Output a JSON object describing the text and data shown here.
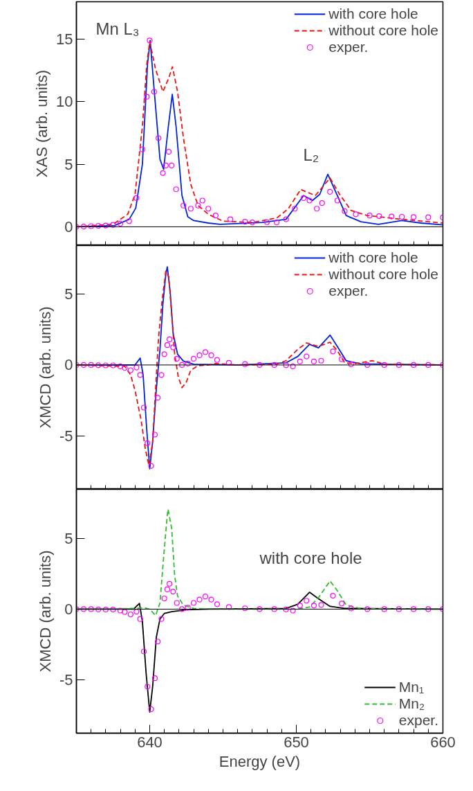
{
  "chart_data": [
    {
      "type": "line",
      "ylabel": "XAS (arb. units)",
      "xlim": [
        635,
        660
      ],
      "ylim": [
        -1.5,
        18
      ],
      "xticks": [
        {
          "value": 635,
          "label": null
        },
        {
          "value": 636,
          "label": null
        },
        {
          "value": 637,
          "label": null
        },
        {
          "value": 638,
          "label": null
        },
        {
          "value": 639,
          "label": null
        },
        {
          "value": 640,
          "label": null
        },
        {
          "value": 641,
          "label": null
        },
        {
          "value": 642,
          "label": null
        },
        {
          "value": 643,
          "label": null
        },
        {
          "value": 644,
          "label": null
        },
        {
          "value": 645,
          "label": null
        },
        {
          "value": 646,
          "label": null
        },
        {
          "value": 647,
          "label": null
        },
        {
          "value": 648,
          "label": null
        },
        {
          "value": 649,
          "label": null
        },
        {
          "value": 650,
          "label": null
        },
        {
          "value": 651,
          "label": null
        },
        {
          "value": 652,
          "label": null
        },
        {
          "value": 653,
          "label": null
        },
        {
          "value": 654,
          "label": null
        },
        {
          "value": 655,
          "label": null
        },
        {
          "value": 656,
          "label": null
        },
        {
          "value": 657,
          "label": null
        },
        {
          "value": 658,
          "label": null
        },
        {
          "value": 659,
          "label": null
        },
        {
          "value": 660,
          "label": null
        }
      ],
      "yticks": [
        0,
        5,
        10,
        15
      ],
      "tick_labels": "y",
      "legend": "top right",
      "ref_lines": [
        {
          "axis": "y",
          "value": 0,
          "color": "#000000"
        }
      ],
      "annotations": [
        "Mn  L₃",
        "L₂"
      ],
      "series": [
        {
          "name": "with core hole",
          "color": "#0022dd",
          "line_style": "solid",
          "x": [
            635,
            637.6,
            638.6,
            639.05,
            639.5,
            639.85,
            640.03,
            640.3,
            640.7,
            640.95,
            641.27,
            641.54,
            641.8,
            642.2,
            642.6,
            643.0,
            644.0,
            644.8,
            647.7,
            649.3,
            650.5,
            651.1,
            651.6,
            652.15,
            652.8,
            653.4,
            654.4,
            655.6,
            657.2,
            658.5,
            660
          ],
          "values": [
            0,
            0.1,
            0.6,
            1.5,
            5,
            13,
            14.9,
            11,
            5.4,
            4.6,
            8,
            10.6,
            8,
            2.5,
            0.8,
            0.5,
            0.3,
            0.2,
            0.35,
            0.6,
            2.5,
            2.1,
            2.6,
            4.2,
            2.5,
            0.9,
            0.4,
            0.2,
            0.5,
            0.3,
            0.15
          ]
        },
        {
          "name": "without core hole",
          "color": "#ee1111",
          "line_style": "dashed",
          "x": [
            635,
            637.5,
            638.5,
            639.0,
            639.5,
            639.8,
            640.0,
            640.4,
            640.9,
            641.3,
            641.55,
            641.9,
            642.3,
            642.8,
            643.3,
            644.0,
            645.0,
            647.0,
            648.66,
            649.45,
            650.3,
            651.3,
            652.3,
            652.95,
            653.74,
            654.85,
            657.2,
            660
          ],
          "values": [
            0,
            0.2,
            1.0,
            2.6,
            8,
            13,
            14.8,
            12.6,
            10.8,
            11.9,
            12.8,
            10.8,
            7.1,
            3.4,
            1.7,
            1.0,
            0.45,
            0.35,
            0.7,
            1.44,
            2.98,
            2.5,
            3.9,
            2.6,
            1.3,
            0.9,
            0.6,
            0.3
          ]
        },
        {
          "name": "exper.",
          "color": "#ff00ff",
          "type": "scatter",
          "marker": "circle",
          "x": [
            635,
            635.5,
            636,
            636.5,
            637,
            637.5,
            638,
            638.6,
            639.1,
            639.5,
            639.8,
            640.0,
            640.3,
            640.6,
            640.9,
            641.1,
            641.3,
            641.5,
            641.8,
            642.3,
            642.8,
            643.3,
            643.6,
            644.0,
            644.5,
            645.5,
            646.5,
            647.0,
            648.0,
            648.66,
            649.3,
            649.9,
            650.5,
            650.9,
            651.4,
            651.76,
            652.3,
            652.8,
            653.3,
            654.06,
            655.0,
            655.65,
            656.5,
            657.2,
            658.0,
            659.0,
            660
          ],
          "values": [
            0,
            0.02,
            0.05,
            0.08,
            0.1,
            0.15,
            0.25,
            0.45,
            2.3,
            6.2,
            10.4,
            14.9,
            10.8,
            7.1,
            4.3,
            4.9,
            6.0,
            4.9,
            3.0,
            1.7,
            1.45,
            1.7,
            2.1,
            1.45,
            0.9,
            0.6,
            0.4,
            0.35,
            0.37,
            0.35,
            0.6,
            1.45,
            2.3,
            2.1,
            1.45,
            1.9,
            2.8,
            2.1,
            1.25,
            1.0,
            0.9,
            0.85,
            0.82,
            0.8,
            0.78,
            0.76,
            0.75
          ]
        }
      ]
    },
    {
      "type": "line",
      "ylabel": "XMCD (arb. units)",
      "xlim": [
        635,
        660
      ],
      "ylim": [
        -8.75,
        8.4
      ],
      "xticks": [
        {
          "value": 635,
          "label": null
        },
        {
          "value": 636,
          "label": null
        },
        {
          "value": 637,
          "label": null
        },
        {
          "value": 638,
          "label": null
        },
        {
          "value": 639,
          "label": null
        },
        {
          "value": 640,
          "label": null
        },
        {
          "value": 641,
          "label": null
        },
        {
          "value": 642,
          "label": null
        },
        {
          "value": 643,
          "label": null
        },
        {
          "value": 644,
          "label": null
        },
        {
          "value": 645,
          "label": null
        },
        {
          "value": 646,
          "label": null
        },
        {
          "value": 647,
          "label": null
        },
        {
          "value": 648,
          "label": null
        },
        {
          "value": 649,
          "label": null
        },
        {
          "value": 650,
          "label": null
        },
        {
          "value": 651,
          "label": null
        },
        {
          "value": 652,
          "label": null
        },
        {
          "value": 653,
          "label": null
        },
        {
          "value": 654,
          "label": null
        },
        {
          "value": 655,
          "label": null
        },
        {
          "value": 656,
          "label": null
        },
        {
          "value": 657,
          "label": null
        },
        {
          "value": 658,
          "label": null
        },
        {
          "value": 659,
          "label": null
        },
        {
          "value": 660,
          "label": null
        }
      ],
      "yticks": [
        -5,
        0,
        5
      ],
      "tick_labels": "y",
      "legend": "top right",
      "ref_lines": [
        {
          "axis": "y",
          "value": 0,
          "color": "#000000"
        }
      ],
      "series": [
        {
          "name": "with core hole",
          "color": "#0022dd",
          "line_style": "solid",
          "x": [
            635,
            638.5,
            639.0,
            639.35,
            639.55,
            639.8,
            640.0,
            640.2,
            640.45,
            640.7,
            640.9,
            641.1,
            641.2,
            641.4,
            641.6,
            641.9,
            642.3,
            643.0,
            646.0,
            649.3,
            650.1,
            650.9,
            651.5,
            652.3,
            652.8,
            653.4,
            654.4,
            660
          ],
          "values": [
            0,
            0,
            0,
            0.48,
            -0.7,
            -4.6,
            -7.3,
            -5.4,
            -1.7,
            1.1,
            4.3,
            6.4,
            6.9,
            5.1,
            2.2,
            0.76,
            0.27,
            0.05,
            0,
            0.15,
            0.6,
            1.45,
            1.2,
            2.1,
            1.3,
            0.3,
            0.07,
            0
          ]
        },
        {
          "name": "without core hole",
          "color": "#ee1111",
          "line_style": "dashed",
          "x": [
            635,
            638.3,
            638.7,
            639.0,
            639.4,
            639.7,
            639.95,
            640.2,
            640.4,
            640.6,
            640.85,
            641.1,
            641.3,
            641.5,
            641.7,
            641.95,
            642.2,
            642.5,
            642.8,
            643.3,
            644.0,
            644.5,
            646.0,
            648.66,
            649.3,
            650.1,
            650.7,
            651.5,
            652.3,
            652.8,
            653.3,
            654.06,
            655.2,
            656.0,
            660
          ],
          "values": [
            0,
            -0.1,
            -0.7,
            -1.8,
            -3.8,
            -5.9,
            -7.1,
            -5.4,
            -1.7,
            1.9,
            4.6,
            6.6,
            6.2,
            3.5,
            0.76,
            -0.85,
            -1.6,
            -1.2,
            -0.37,
            -0.05,
            0,
            0.1,
            0,
            0.05,
            0.3,
            1.1,
            1.55,
            1.3,
            1.6,
            1.0,
            0.15,
            0.1,
            0.3,
            0.05,
            0
          ]
        },
        {
          "name": "exper.",
          "color": "#ff00ff",
          "type": "scatter",
          "marker": "circle",
          "x": [
            635,
            635.5,
            636,
            636.5,
            637,
            637.5,
            638,
            638.3,
            638.7,
            639.1,
            639.35,
            639.6,
            639.85,
            640.1,
            640.35,
            640.55,
            640.8,
            641.0,
            641.2,
            641.35,
            641.6,
            641.85,
            642.2,
            642.6,
            643.0,
            643.4,
            643.8,
            644.2,
            644.6,
            645.4,
            646.5,
            647.5,
            648.5,
            649.3,
            649.77,
            650.25,
            650.7,
            651.2,
            651.7,
            652.5,
            653.1,
            653.74,
            654.85,
            656,
            657,
            658,
            659,
            660
          ],
          "values": [
            0,
            0,
            0,
            -0.02,
            -0.03,
            -0.03,
            -0.1,
            -0.2,
            -0.37,
            -0.18,
            -0.7,
            -3.0,
            -5.5,
            -7.1,
            -4.9,
            -2.3,
            -0.7,
            0.76,
            1.4,
            1.8,
            1.24,
            0.44,
            0,
            0.1,
            0.44,
            0.68,
            0.9,
            0.68,
            0.35,
            0.15,
            0.06,
            0,
            0,
            -0.02,
            -0.1,
            0.25,
            0.6,
            0.25,
            0.3,
            0.95,
            0.4,
            0.05,
            0,
            0,
            0,
            0,
            0,
            0
          ]
        }
      ]
    },
    {
      "type": "line",
      "xlabel": "Energy (eV)",
      "ylabel": "XMCD (arb. units)",
      "xlim": [
        635,
        660
      ],
      "ylim": [
        -8.8,
        8.5
      ],
      "xticks": [
        {
          "value": 635,
          "label": null
        },
        {
          "value": 636,
          "label": null
        },
        {
          "value": 637,
          "label": null
        },
        {
          "value": 638,
          "label": null
        },
        {
          "value": 639,
          "label": null
        },
        {
          "value": 640,
          "label": "640"
        },
        {
          "value": 641,
          "label": null
        },
        {
          "value": 642,
          "label": null
        },
        {
          "value": 643,
          "label": null
        },
        {
          "value": 644,
          "label": null
        },
        {
          "value": 645,
          "label": null
        },
        {
          "value": 646,
          "label": null
        },
        {
          "value": 647,
          "label": null
        },
        {
          "value": 648,
          "label": null
        },
        {
          "value": 649,
          "label": null
        },
        {
          "value": 650,
          "label": "650"
        },
        {
          "value": 651,
          "label": null
        },
        {
          "value": 652,
          "label": null
        },
        {
          "value": 653,
          "label": null
        },
        {
          "value": 654,
          "label": null
        },
        {
          "value": 655,
          "label": null
        },
        {
          "value": 656,
          "label": null
        },
        {
          "value": 657,
          "label": null
        },
        {
          "value": 658,
          "label": null
        },
        {
          "value": 659,
          "label": null
        },
        {
          "value": 660,
          "label": "660"
        }
      ],
      "yticks": [
        -5,
        0,
        5
      ],
      "legend": "bottom right",
      "ref_lines": [
        {
          "axis": "y",
          "value": 0,
          "color": "#000000"
        }
      ],
      "annotations": [
        "with core hole"
      ],
      "series": [
        {
          "name": "Mn₁",
          "color": "#000000",
          "line_style": "solid",
          "x": [
            635,
            638.5,
            638.9,
            639.3,
            639.5,
            639.75,
            640.0,
            640.2,
            640.45,
            640.7,
            641.0,
            641.5,
            642.5,
            644.0,
            649.3,
            650.1,
            650.9,
            651.5,
            652.3,
            653.3,
            660
          ],
          "values": [
            0,
            0,
            0,
            0.41,
            -0.87,
            -4.5,
            -7.3,
            -5.5,
            -2.0,
            -0.7,
            -0.3,
            -0.18,
            -0.05,
            0,
            0.05,
            0.35,
            1.2,
            0.75,
            0.2,
            0.05,
            0
          ]
        },
        {
          "name": "Mn₂",
          "color": "#33bb33",
          "line_style": "dashed",
          "x": [
            635,
            639.0,
            639.6,
            640.0,
            640.4,
            640.7,
            640.95,
            641.2,
            641.25,
            641.5,
            641.7,
            641.9,
            642.3,
            643.0,
            645.0,
            650.1,
            650.9,
            651.5,
            652.3,
            652.8,
            653.4,
            654.4,
            660
          ],
          "values": [
            0,
            0.05,
            0.1,
            0,
            -0.46,
            0.44,
            3.7,
            6.7,
            7.1,
            5.7,
            2.4,
            0.93,
            0.28,
            0.05,
            0,
            0,
            0.15,
            0.8,
            2.0,
            1.3,
            0.3,
            0.03,
            0
          ]
        },
        {
          "name": "exper.",
          "color": "#ff00ff",
          "type": "scatter",
          "marker": "circle",
          "x": [
            635,
            635.5,
            636,
            636.5,
            637,
            637.5,
            638,
            638.3,
            638.7,
            639.1,
            639.35,
            639.6,
            639.85,
            640.1,
            640.35,
            640.55,
            640.8,
            641.0,
            641.2,
            641.35,
            641.6,
            641.85,
            642.2,
            642.6,
            643.0,
            643.4,
            643.8,
            644.2,
            644.6,
            645.4,
            646.5,
            647.5,
            648.5,
            649.3,
            649.77,
            650.25,
            650.7,
            651.2,
            651.7,
            652.5,
            653.1,
            653.74,
            654.85,
            656,
            657,
            658,
            659,
            660
          ],
          "values": [
            0,
            0,
            0,
            -0.02,
            -0.03,
            -0.03,
            -0.1,
            -0.2,
            -0.37,
            -0.18,
            -0.7,
            -3.0,
            -5.5,
            -7.1,
            -4.9,
            -2.3,
            -0.7,
            0.76,
            1.4,
            1.8,
            1.24,
            0.44,
            0,
            0.1,
            0.44,
            0.68,
            0.9,
            0.68,
            0.35,
            0.15,
            0.06,
            0,
            0,
            -0.02,
            -0.1,
            0.25,
            0.6,
            0.25,
            0.3,
            0.95,
            0.4,
            0.05,
            0,
            0,
            0,
            0,
            0,
            0
          ]
        }
      ]
    }
  ]
}
